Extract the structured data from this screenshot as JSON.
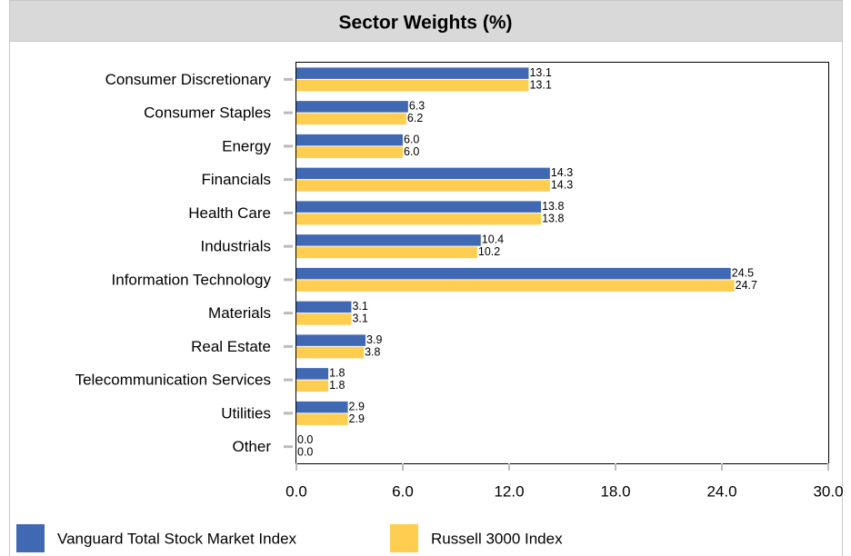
{
  "chart_data": {
    "type": "bar",
    "orientation": "horizontal",
    "title": "Sector Weights (%)",
    "categories": [
      "Consumer Discretionary",
      "Consumer Staples",
      "Energy",
      "Financials",
      "Health Care",
      "Industrials",
      "Information Technology",
      "Materials",
      "Real Estate",
      "Telecommunication Services",
      "Utilities",
      "Other"
    ],
    "series": [
      {
        "name": "Vanguard Total Stock Market Index",
        "color": "#4169b3",
        "values": [
          13.1,
          6.3,
          6.0,
          14.3,
          13.8,
          10.4,
          24.5,
          3.1,
          3.9,
          1.8,
          2.9,
          0.0
        ],
        "value_labels": [
          "13.1",
          "6.3",
          "6.0",
          "14.3",
          "13.8",
          "10.4",
          "24.5",
          "3.1",
          "3.9",
          "1.8",
          "2.9",
          "0.0"
        ]
      },
      {
        "name": "Russell 3000 Index",
        "color": "#ffcd4f",
        "values": [
          13.1,
          6.2,
          6.0,
          14.3,
          13.8,
          10.2,
          24.7,
          3.1,
          3.8,
          1.8,
          2.9,
          0.0
        ],
        "value_labels": [
          "13.1",
          "6.2",
          "6.0",
          "14.3",
          "13.8",
          "10.2",
          "24.7",
          "3.1",
          "3.8",
          "1.8",
          "2.9",
          "0.0"
        ]
      }
    ],
    "xlim": [
      0,
      30
    ],
    "xticks": [
      {
        "value": 0,
        "label": "0.0"
      },
      {
        "value": 6,
        "label": "6.0"
      },
      {
        "value": 12,
        "label": "12.0"
      },
      {
        "value": 18,
        "label": "18.0"
      },
      {
        "value": 24,
        "label": "24.0"
      },
      {
        "value": 30,
        "label": "30.0"
      }
    ],
    "grid": false,
    "legend": "bottom"
  }
}
